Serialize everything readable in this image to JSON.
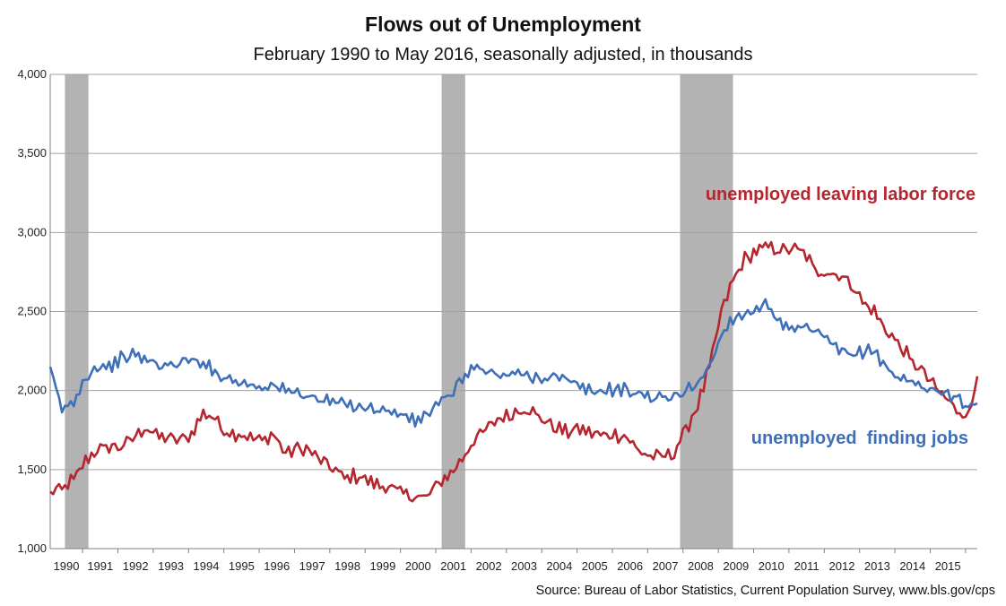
{
  "title": "Flows out of Unemployment",
  "subtitle": "February 1990 to May 2016, seasonally adjusted, in thousands",
  "source": "Source: Bureau of Labor Statistics, Current Population Survey, www.bls.gov/cps",
  "colors": {
    "red_series": "#b5262e",
    "blue_series": "#3f6fb8",
    "recession": "#b3b3b3",
    "grid": "#a0a0a0"
  },
  "chart_data": {
    "type": "line",
    "x_domain": [
      "1990-02",
      "2016-05"
    ],
    "ylim": [
      1000,
      4000
    ],
    "y_ticks": [
      1000,
      1500,
      2000,
      2500,
      3000,
      3500,
      4000
    ],
    "y_tick_labels": [
      "1,000",
      "1,500",
      "2,000",
      "2,500",
      "3,000",
      "3,500",
      "4,000"
    ],
    "x_tick_labels": [
      "1990",
      "1991",
      "1992",
      "1993",
      "1994",
      "1995",
      "1996",
      "1997",
      "1998",
      "1999",
      "2000",
      "2001",
      "2002",
      "2003",
      "2004",
      "2005",
      "2006",
      "2007",
      "2008",
      "2009",
      "2010",
      "2011",
      "2012",
      "2013",
      "2014",
      "2015"
    ],
    "grid": "horizontal",
    "recessions": [
      {
        "start": "1990-07",
        "end": "1991-03"
      },
      {
        "start": "2001-03",
        "end": "2001-11"
      },
      {
        "start": "2007-12",
        "end": "2009-06"
      }
    ],
    "series": [
      {
        "name": "unemployed leaving labor force",
        "color": "#b5262e",
        "points": [
          [
            "1990-02",
            1360
          ],
          [
            "1990-06",
            1380
          ],
          [
            "1990-10",
            1440
          ],
          [
            "1991-02",
            1560
          ],
          [
            "1991-06",
            1620
          ],
          [
            "1991-10",
            1650
          ],
          [
            "1992-02",
            1640
          ],
          [
            "1992-06",
            1700
          ],
          [
            "1992-10",
            1760
          ],
          [
            "1993-02",
            1720
          ],
          [
            "1993-06",
            1700
          ],
          [
            "1993-10",
            1690
          ],
          [
            "1994-02",
            1720
          ],
          [
            "1994-06",
            1860
          ],
          [
            "1994-10",
            1820
          ],
          [
            "1995-02",
            1730
          ],
          [
            "1995-06",
            1720
          ],
          [
            "1995-10",
            1700
          ],
          [
            "1996-02",
            1690
          ],
          [
            "1996-06",
            1720
          ],
          [
            "1996-10",
            1600
          ],
          [
            "1997-02",
            1640
          ],
          [
            "1997-06",
            1620
          ],
          [
            "1997-10",
            1560
          ],
          [
            "1998-02",
            1510
          ],
          [
            "1998-06",
            1450
          ],
          [
            "1998-10",
            1460
          ],
          [
            "1999-02",
            1430
          ],
          [
            "1999-06",
            1400
          ],
          [
            "1999-10",
            1380
          ],
          [
            "2000-02",
            1360
          ],
          [
            "2000-06",
            1320
          ],
          [
            "2000-10",
            1330
          ],
          [
            "2001-02",
            1420
          ],
          [
            "2001-06",
            1470
          ],
          [
            "2001-10",
            1570
          ],
          [
            "2002-02",
            1680
          ],
          [
            "2002-06",
            1760
          ],
          [
            "2002-10",
            1820
          ],
          [
            "2003-02",
            1840
          ],
          [
            "2003-06",
            1880
          ],
          [
            "2003-10",
            1860
          ],
          [
            "2004-02",
            1810
          ],
          [
            "2004-06",
            1760
          ],
          [
            "2004-10",
            1740
          ],
          [
            "2005-02",
            1760
          ],
          [
            "2005-06",
            1730
          ],
          [
            "2005-10",
            1720
          ],
          [
            "2006-02",
            1720
          ],
          [
            "2006-06",
            1700
          ],
          [
            "2006-10",
            1620
          ],
          [
            "2007-02",
            1580
          ],
          [
            "2007-06",
            1590
          ],
          [
            "2007-10",
            1600
          ],
          [
            "2008-02",
            1760
          ],
          [
            "2008-06",
            1900
          ],
          [
            "2008-10",
            2150
          ],
          [
            "2009-02",
            2500
          ],
          [
            "2009-06",
            2700
          ],
          [
            "2009-10",
            2830
          ],
          [
            "2010-02",
            2880
          ],
          [
            "2010-06",
            2920
          ],
          [
            "2010-10",
            2880
          ],
          [
            "2011-02",
            2900
          ],
          [
            "2011-06",
            2880
          ],
          [
            "2011-10",
            2760
          ],
          [
            "2012-02",
            2740
          ],
          [
            "2012-06",
            2730
          ],
          [
            "2012-10",
            2680
          ],
          [
            "2013-02",
            2560
          ],
          [
            "2013-06",
            2500
          ],
          [
            "2013-10",
            2380
          ],
          [
            "2014-02",
            2300
          ],
          [
            "2014-06",
            2200
          ],
          [
            "2014-10",
            2130
          ],
          [
            "2015-02",
            2040
          ],
          [
            "2015-06",
            1960
          ],
          [
            "2015-10",
            1880
          ],
          [
            "2016-02",
            1830
          ],
          [
            "2016-05",
            2090
          ]
        ]
      },
      {
        "name": "unemployed  finding jobs",
        "color": "#3f6fb8",
        "points": [
          [
            "1990-02",
            2150
          ],
          [
            "1990-06",
            1880
          ],
          [
            "1990-10",
            1930
          ],
          [
            "1991-02",
            2080
          ],
          [
            "1991-06",
            2150
          ],
          [
            "1991-10",
            2150
          ],
          [
            "1992-02",
            2200
          ],
          [
            "1992-06",
            2230
          ],
          [
            "1992-10",
            2200
          ],
          [
            "1993-02",
            2170
          ],
          [
            "1993-06",
            2150
          ],
          [
            "1993-10",
            2180
          ],
          [
            "1994-02",
            2190
          ],
          [
            "1994-06",
            2180
          ],
          [
            "1994-10",
            2110
          ],
          [
            "1995-02",
            2080
          ],
          [
            "1995-06",
            2050
          ],
          [
            "1995-10",
            2040
          ],
          [
            "1996-02",
            2020
          ],
          [
            "1996-06",
            2030
          ],
          [
            "1996-10",
            2000
          ],
          [
            "1997-02",
            1990
          ],
          [
            "1997-06",
            1960
          ],
          [
            "1997-10",
            1940
          ],
          [
            "1998-02",
            1930
          ],
          [
            "1998-06",
            1920
          ],
          [
            "1998-10",
            1900
          ],
          [
            "1999-02",
            1890
          ],
          [
            "1999-06",
            1880
          ],
          [
            "1999-10",
            1860
          ],
          [
            "2000-02",
            1850
          ],
          [
            "2000-06",
            1800
          ],
          [
            "2000-10",
            1850
          ],
          [
            "2001-02",
            1920
          ],
          [
            "2001-06",
            1970
          ],
          [
            "2001-10",
            2080
          ],
          [
            "2002-02",
            2150
          ],
          [
            "2002-06",
            2120
          ],
          [
            "2002-10",
            2100
          ],
          [
            "2003-02",
            2100
          ],
          [
            "2003-06",
            2110
          ],
          [
            "2003-10",
            2080
          ],
          [
            "2004-02",
            2080
          ],
          [
            "2004-06",
            2090
          ],
          [
            "2004-10",
            2060
          ],
          [
            "2005-02",
            2030
          ],
          [
            "2005-06",
            1990
          ],
          [
            "2005-10",
            2000
          ],
          [
            "2006-02",
            2010
          ],
          [
            "2006-06",
            2000
          ],
          [
            "2006-10",
            1980
          ],
          [
            "2007-02",
            1960
          ],
          [
            "2007-06",
            1950
          ],
          [
            "2007-10",
            1960
          ],
          [
            "2008-02",
            2000
          ],
          [
            "2008-06",
            2050
          ],
          [
            "2008-10",
            2150
          ],
          [
            "2009-02",
            2350
          ],
          [
            "2009-06",
            2460
          ],
          [
            "2009-10",
            2480
          ],
          [
            "2010-02",
            2520
          ],
          [
            "2010-06",
            2550
          ],
          [
            "2010-10",
            2420
          ],
          [
            "2011-02",
            2380
          ],
          [
            "2011-06",
            2400
          ],
          [
            "2011-10",
            2380
          ],
          [
            "2012-02",
            2320
          ],
          [
            "2012-06",
            2260
          ],
          [
            "2012-10",
            2220
          ],
          [
            "2013-02",
            2250
          ],
          [
            "2013-06",
            2250
          ],
          [
            "2013-10",
            2150
          ],
          [
            "2014-02",
            2080
          ],
          [
            "2014-06",
            2060
          ],
          [
            "2014-10",
            2030
          ],
          [
            "2015-02",
            2000
          ],
          [
            "2015-06",
            1980
          ],
          [
            "2015-10",
            1970
          ],
          [
            "2016-02",
            1880
          ],
          [
            "2016-05",
            1920
          ]
        ]
      }
    ]
  }
}
